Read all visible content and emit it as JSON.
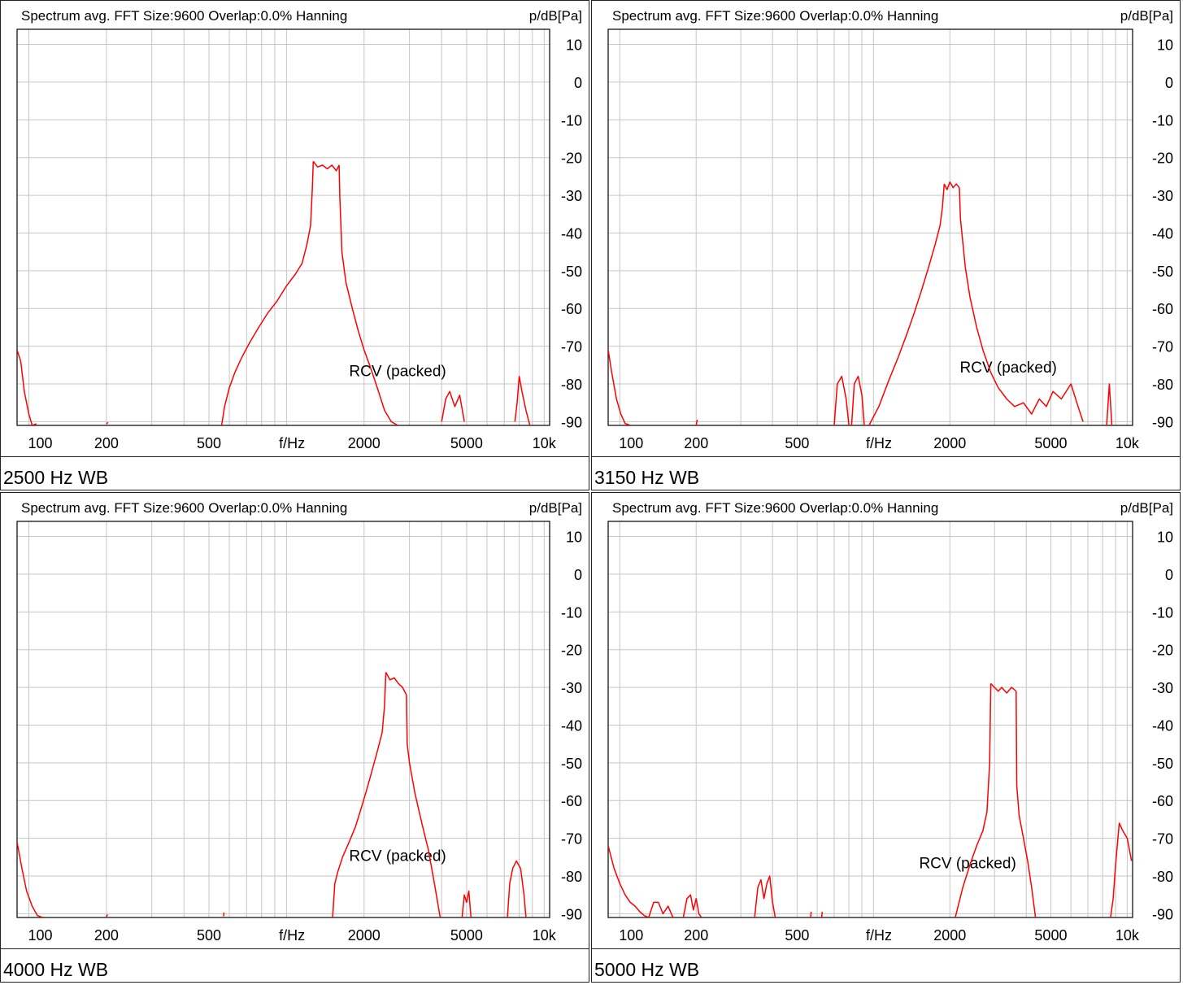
{
  "panels": [
    {
      "caption": "2500 Hz WB",
      "chart_data": {
        "type": "line",
        "title": "Spectrum avg.  FFT Size:9600  Overlap:0.0%  Hanning",
        "ylabel": "p/dB[Pa]",
        "xlabel": "f/Hz",
        "x_scale": "log",
        "xlim": [
          90,
          10500
        ],
        "ylim": [
          -91,
          14
        ],
        "x_ticks": [
          {
            "v": 100,
            "t": "100"
          },
          {
            "v": 200,
            "t": "200"
          },
          {
            "v": 500,
            "t": "500"
          },
          {
            "v": 2000,
            "t": "2000"
          },
          {
            "v": 5000,
            "t": "5000"
          },
          {
            "v": 10000,
            "t": "10k"
          }
        ],
        "y_ticks": [
          10,
          0,
          -10,
          -20,
          -30,
          -40,
          -50,
          -60,
          -70,
          -80,
          -90
        ],
        "annotation": "RCV (packed)",
        "annotation_at": [
          2700,
          -78
        ],
        "grid": true,
        "line_color": "#ff0000",
        "series": [
          {
            "x": [
              90,
              93,
              96,
              100,
              103,
              107
            ],
            "y": [
              -71,
              -74,
              -82,
              -88,
              -91,
              -90.6
            ]
          },
          {
            "x": [
              200,
              203
            ],
            "y": [
              -90.6,
              -90.2
            ]
          },
          {
            "x": [
              560,
              575,
              600,
              630,
              670,
              720,
              780,
              850,
              920,
              1000,
              1080,
              1150,
              1200,
              1240,
              1260,
              1270
            ],
            "y": [
              -91,
              -86,
              -81,
              -77,
              -73,
              -69,
              -65,
              -61,
              -58,
              -54,
              -51,
              -48,
              -43,
              -38,
              -28,
              -21
            ]
          },
          {
            "x": [
              1270,
              1320,
              1380,
              1440,
              1500,
              1560,
              1600
            ],
            "y": [
              -21,
              -22.5,
              -22,
              -23,
              -22,
              -23.5,
              -22
            ]
          },
          {
            "x": [
              1600,
              1610,
              1640,
              1700,
              1800,
              1900,
              2000,
              2100,
              2200,
              2300,
              2400,
              2550,
              2700
            ],
            "y": [
              -22,
              -30,
              -45,
              -53,
              -60,
              -66,
              -71,
              -75,
              -79,
              -83,
              -87,
              -90,
              -91
            ]
          },
          {
            "x": [
              4000,
              4150,
              4300,
              4500,
              4700,
              4900
            ],
            "y": [
              -90,
              -84,
              -82,
              -86,
              -83,
              -90
            ]
          },
          {
            "x": [
              7700,
              7850,
              8000,
              8200,
              8500,
              8800
            ],
            "y": [
              -90,
              -85,
              -78,
              -82,
              -87,
              -91
            ]
          }
        ]
      }
    },
    {
      "caption": "3150 Hz WB",
      "chart_data": {
        "type": "line",
        "title": "Spectrum avg.  FFT Size:9600  Overlap:0.0%  Hanning",
        "ylabel": "p/dB[Pa]",
        "xlabel": "f/Hz",
        "x_scale": "log",
        "xlim": [
          90,
          10500
        ],
        "ylim": [
          -91,
          14
        ],
        "x_ticks": [
          {
            "v": 100,
            "t": "100"
          },
          {
            "v": 200,
            "t": "200"
          },
          {
            "v": 500,
            "t": "500"
          },
          {
            "v": 2000,
            "t": "2000"
          },
          {
            "v": 5000,
            "t": "5000"
          },
          {
            "v": 10000,
            "t": "10k"
          }
        ],
        "y_ticks": [
          10,
          0,
          -10,
          -20,
          -30,
          -40,
          -50,
          -60,
          -70,
          -80,
          -90
        ],
        "annotation": "RCV (packed)",
        "annotation_at": [
          3400,
          -77
        ],
        "grid": true,
        "line_color": "#ff0000",
        "series": [
          {
            "x": [
              90,
              93,
              97,
              101,
              105,
              110
            ],
            "y": [
              -71,
              -77,
              -84,
              -88,
              -90.5,
              -91
            ]
          },
          {
            "x": [
              200,
              202
            ],
            "y": [
              -91,
              -89.5
            ]
          },
          {
            "x": [
              700,
              720,
              750,
              780,
              800
            ],
            "y": [
              -91,
              -80,
              -78,
              -84,
              -91
            ]
          },
          {
            "x": [
              820,
              840,
              870,
              900,
              920
            ],
            "y": [
              -91,
              -80,
              -78,
              -83,
              -91
            ]
          },
          {
            "x": [
              960,
              1050,
              1150,
              1250,
              1350,
              1450,
              1550,
              1650,
              1750,
              1830,
              1870,
              1900
            ],
            "y": [
              -91,
              -86,
              -79,
              -73,
              -67,
              -61,
              -55,
              -49,
              -43,
              -38,
              -33,
              -27
            ]
          },
          {
            "x": [
              1900,
              1950,
              2000,
              2060,
              2120,
              2180
            ],
            "y": [
              -27,
              -28.5,
              -26.5,
              -28,
              -27,
              -28
            ]
          },
          {
            "x": [
              2180,
              2200,
              2300,
              2400,
              2550,
              2700,
              2900,
              3100,
              3350,
              3600,
              3900,
              4200,
              4500,
              4800,
              5100,
              5500,
              6000,
              6400,
              6700
            ],
            "y": [
              -28,
              -36,
              -49,
              -57,
              -65,
              -71,
              -77,
              -81,
              -84,
              -86,
              -85,
              -88,
              -84,
              -86,
              -82,
              -84,
              -80,
              -86,
              -90
            ]
          },
          {
            "x": [
              8300,
              8500,
              8700
            ],
            "y": [
              -91,
              -80,
              -91
            ]
          }
        ]
      }
    },
    {
      "caption": "4000 Hz WB",
      "chart_data": {
        "type": "line",
        "title": "Spectrum avg.  FFT Size:9600  Overlap:0.0%  Hanning",
        "ylabel": "p/dB[Pa]",
        "xlabel": "f/Hz",
        "x_scale": "log",
        "xlim": [
          90,
          10500
        ],
        "ylim": [
          -91,
          14
        ],
        "x_ticks": [
          {
            "v": 100,
            "t": "100"
          },
          {
            "v": 200,
            "t": "200"
          },
          {
            "v": 500,
            "t": "500"
          },
          {
            "v": 2000,
            "t": "2000"
          },
          {
            "v": 5000,
            "t": "5000"
          },
          {
            "v": 10000,
            "t": "10k"
          }
        ],
        "y_ticks": [
          10,
          0,
          -10,
          -20,
          -30,
          -40,
          -50,
          -60,
          -70,
          -80,
          -90
        ],
        "annotation": "RCV (packed)",
        "annotation_at": [
          2700,
          -76
        ],
        "grid": true,
        "line_color": "#ff0000",
        "series": [
          {
            "x": [
              90,
              94,
              98,
              103,
              108,
              113
            ],
            "y": [
              -71,
              -78,
              -84,
              -88,
              -90.5,
              -91
            ]
          },
          {
            "x": [
              200,
              202
            ],
            "y": [
              -90.8,
              -90.2
            ]
          },
          {
            "x": [
              570,
              572
            ],
            "y": [
              -90.7,
              -89.7
            ]
          },
          {
            "x": [
              1510,
              1540,
              1580,
              1650,
              1750,
              1850,
              1950,
              2050,
              2150,
              2250,
              2350,
              2400,
              2430
            ],
            "y": [
              -91,
              -82,
              -79,
              -75,
              -71,
              -67,
              -62,
              -57,
              -52,
              -47,
              -42,
              -35,
              -26
            ]
          },
          {
            "x": [
              2430,
              2520,
              2620,
              2720,
              2820,
              2920
            ],
            "y": [
              -26,
              -28,
              -27.5,
              -29,
              -30,
              -32
            ]
          },
          {
            "x": [
              2920,
              2940,
              3000,
              3150,
              3350,
              3550,
              3750,
              3950
            ],
            "y": [
              -32,
              -45,
              -50,
              -58,
              -66,
              -73,
              -82,
              -91
            ]
          },
          {
            "x": [
              4800,
              4900,
              5000,
              5100,
              5200
            ],
            "y": [
              -91,
              -85,
              -87,
              -84,
              -91
            ]
          },
          {
            "x": [
              7200,
              7350,
              7550,
              7800,
              8100,
              8350,
              8500
            ],
            "y": [
              -91,
              -82,
              -78,
              -76,
              -78,
              -85,
              -91
            ]
          }
        ]
      }
    },
    {
      "caption": "5000 Hz WB",
      "chart_data": {
        "type": "line",
        "title": "Spectrum avg.  FFT Size:9600  Overlap:0.0%  Hanning",
        "ylabel": "p/dB[Pa]",
        "xlabel": "f/Hz",
        "x_scale": "log",
        "xlim": [
          90,
          10500
        ],
        "ylim": [
          -91,
          14
        ],
        "x_ticks": [
          {
            "v": 100,
            "t": "100"
          },
          {
            "v": 200,
            "t": "200"
          },
          {
            "v": 500,
            "t": "500"
          },
          {
            "v": 2000,
            "t": "2000"
          },
          {
            "v": 5000,
            "t": "5000"
          },
          {
            "v": 10000,
            "t": "10k"
          }
        ],
        "y_ticks": [
          10,
          0,
          -10,
          -20,
          -30,
          -40,
          -50,
          -60,
          -70,
          -80,
          -90
        ],
        "annotation": "RCV (packed)",
        "annotation_at": [
          2350,
          -78
        ],
        "grid": true,
        "line_color": "#ff0000",
        "series": [
          {
            "x": [
              90,
              95,
              100,
              105,
              110,
              115,
              120,
              125,
              130
            ],
            "y": [
              -72,
              -78,
              -82,
              -85,
              -87,
              -88,
              -89.5,
              -90.5,
              -91
            ]
          },
          {
            "x": [
              130,
              136,
              142,
              148,
              155,
              162
            ],
            "y": [
              -91,
              -87,
              -87,
              -90,
              -88,
              -91
            ]
          },
          {
            "x": [
              178,
              184,
              190,
              195,
              200,
              205,
              210
            ],
            "y": [
              -91,
              -86,
              -85,
              -89,
              -86,
              -90,
              -91
            ]
          },
          {
            "x": [
              340,
              350,
              360,
              370,
              380,
              390,
              400,
              410
            ],
            "y": [
              -91,
              -83,
              -81,
              -86,
              -82,
              -80,
              -87,
              -91
            ]
          },
          {
            "x": [
              565,
              568
            ],
            "y": [
              -91,
              -89.5
            ]
          },
          {
            "x": [
              625,
              628
            ],
            "y": [
              -91,
              -89.5
            ]
          },
          {
            "x": [
              2100,
              2250,
              2400,
              2550,
              2700,
              2800,
              2870,
              2900
            ],
            "y": [
              -91,
              -83,
              -77,
              -72,
              -68,
              -63,
              -50,
              -29
            ]
          },
          {
            "x": [
              2900,
              3000,
              3100,
              3200,
              3350,
              3500,
              3650
            ],
            "y": [
              -29,
              -30,
              -31,
              -30,
              -31.5,
              -30,
              -31
            ]
          },
          {
            "x": [
              3650,
              3670,
              3750,
              3900,
              4050,
              4200,
              4350
            ],
            "y": [
              -31,
              -56,
              -64,
              -70,
              -76,
              -83,
              -91
            ]
          },
          {
            "x": [
              8600,
              8800,
              9000,
              9300,
              9600,
              10000,
              10400
            ],
            "y": [
              -91,
              -86,
              -77,
              -66,
              -68,
              -70,
              -76
            ]
          }
        ]
      }
    }
  ]
}
